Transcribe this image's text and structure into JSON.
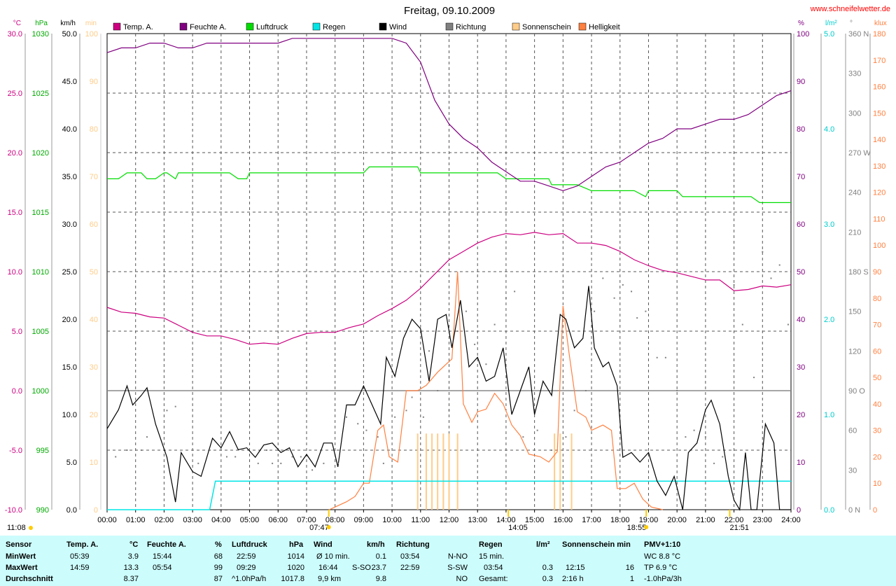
{
  "title": "Freitag, 09.10.2009",
  "website": "www.schneifelwetter.de",
  "colors": {
    "temp": "#cc0080",
    "humidity": "#800080",
    "pressure": "#00dd00",
    "rain": "#00e5e5",
    "wind": "#000000",
    "direction": "#808080",
    "sunshine": "#ffcc88",
    "brightness": "#ff8040",
    "stats_bg": "#ccfcfc"
  },
  "legend": [
    {
      "name": "Temp. A.",
      "color": "#cc0080"
    },
    {
      "name": "Feuchte A.",
      "color": "#800080"
    },
    {
      "name": "Luftdruck",
      "color": "#00dd00"
    },
    {
      "name": "Regen",
      "color": "#00e5e5"
    },
    {
      "name": "Wind",
      "color": "#000000"
    },
    {
      "name": "Richtung",
      "color": "#808080"
    },
    {
      "name": "Sonnenschein",
      "color": "#ffcc88"
    },
    {
      "name": "Helligkeit",
      "color": "#ff8040"
    }
  ],
  "axes": {
    "left": [
      {
        "unit": "°C",
        "color": "#cc0080",
        "ticks": [
          "30.0",
          "25.0",
          "20.0",
          "15.0",
          "10.0",
          "5.0",
          "0.0",
          "-5.0",
          "-10.0"
        ]
      },
      {
        "unit": "hPa",
        "color": "#00aa00",
        "ticks": [
          "1030",
          "1025",
          "1020",
          "1015",
          "1010",
          "1005",
          "1000",
          "995",
          "990"
        ]
      },
      {
        "unit": "km/h",
        "color": "#000000",
        "ticks": [
          "50.0",
          "45.0",
          "40.0",
          "35.0",
          "30.0",
          "25.0",
          "20.0",
          "15.0",
          "10.0",
          "5.0",
          "0.0"
        ]
      },
      {
        "unit": "min",
        "color": "#ffcc88",
        "ticks": [
          "100",
          "90",
          "80",
          "70",
          "60",
          "50",
          "40",
          "30",
          "20",
          "10",
          "0"
        ]
      }
    ],
    "right": [
      {
        "unit": "%",
        "color": "#800080",
        "ticks": [
          "100",
          "90",
          "80",
          "70",
          "60",
          "50",
          "40",
          "30",
          "20",
          "10",
          "0"
        ]
      },
      {
        "unit": "l/m²",
        "color": "#00cccc",
        "ticks": [
          "5.0",
          "4.0",
          "3.0",
          "2.0",
          "1.0",
          "0.0"
        ]
      },
      {
        "unit": "°",
        "color": "#808080",
        "ticks": [
          "360 N",
          "330",
          "300",
          "270 W",
          "240",
          "210",
          "180 S",
          "150",
          "120",
          "90 O",
          "60",
          "30",
          "0 N"
        ]
      },
      {
        "unit": "klux",
        "color": "#ff8040",
        "ticks": [
          "180",
          "170",
          "160",
          "150",
          "140",
          "130",
          "120",
          "110",
          "100",
          "90",
          "80",
          "70",
          "60",
          "50",
          "40",
          "30",
          "20",
          "10",
          "0"
        ]
      }
    ],
    "x_ticks": [
      "00:00",
      "01:00",
      "02:00",
      "03:00",
      "04:00",
      "05:00",
      "06:00",
      "07:00",
      "08:00",
      "09:00",
      "10:00",
      "11:00",
      "12:00",
      "13:00",
      "14:00",
      "15:00",
      "16:00",
      "17:00",
      "18:00",
      "19:00",
      "20:00",
      "21:00",
      "22:00",
      "23:00",
      "24:00"
    ]
  },
  "markers": {
    "moonrise": "11:08",
    "sunrise": "07:47",
    "sunset": "18:55",
    "m1": "14:05",
    "m2": "21:51"
  },
  "chart_data": {
    "type": "line",
    "title": "Freitag, 09.10.2009",
    "x_unit": "hour",
    "series": [
      {
        "name": "Temp. A.",
        "unit": "°C",
        "x": [
          0,
          0.5,
          1,
          1.5,
          2,
          2.5,
          3,
          3.5,
          4,
          4.5,
          5,
          5.5,
          6,
          6.5,
          7,
          7.5,
          8,
          8.5,
          9,
          9.5,
          10,
          10.5,
          11,
          11.5,
          12,
          12.5,
          13,
          13.5,
          14,
          14.5,
          15,
          15.5,
          16,
          16.5,
          17,
          17.5,
          18,
          18.5,
          19,
          19.5,
          20,
          20.5,
          21,
          21.5,
          22,
          22.5,
          23,
          23.5,
          24
        ],
        "y": [
          7.0,
          6.6,
          6.5,
          6.2,
          6.1,
          5.5,
          4.9,
          4.6,
          4.6,
          4.3,
          3.9,
          4.0,
          3.9,
          4.4,
          4.8,
          4.9,
          4.9,
          5.3,
          5.6,
          6.3,
          6.9,
          7.6,
          8.6,
          9.8,
          11.0,
          11.7,
          12.4,
          12.9,
          13.2,
          13.1,
          13.3,
          13.1,
          13.2,
          12.4,
          12.4,
          12.2,
          11.7,
          11.0,
          10.5,
          10.1,
          9.9,
          9.6,
          9.3,
          9.3,
          8.4,
          8.5,
          8.8,
          8.7,
          8.9
        ]
      },
      {
        "name": "Feuchte A.",
        "unit": "%",
        "x": [
          0,
          0.5,
          1,
          1.5,
          2,
          2.5,
          3,
          3.5,
          4,
          4.5,
          5,
          5.5,
          6,
          6.5,
          7,
          7.5,
          8,
          8.5,
          9,
          9.5,
          10,
          10.5,
          11,
          11.5,
          12,
          12.5,
          13,
          13.5,
          14,
          14.5,
          15,
          15.5,
          16,
          16.5,
          17,
          17.5,
          18,
          18.5,
          19,
          19.5,
          20,
          20.5,
          21,
          21.5,
          22,
          22.5,
          23,
          23.5,
          24
        ],
        "y": [
          96,
          97,
          97,
          98,
          98,
          97,
          97,
          98,
          98,
          98,
          98,
          98,
          98,
          99,
          99,
          99,
          99,
          99,
          99,
          99,
          99,
          98,
          94,
          86,
          81,
          78,
          76,
          73,
          71,
          69,
          69,
          68,
          67,
          68,
          70,
          72,
          73,
          75,
          77,
          78,
          80,
          80,
          81,
          82,
          82,
          83,
          85,
          87,
          88
        ]
      },
      {
        "name": "Luftdruck",
        "unit": "hPa",
        "x": [
          0,
          0.4,
          0.7,
          1.2,
          1.4,
          1.7,
          2.0,
          2.1,
          2.4,
          2.5,
          3,
          3.5,
          4,
          4.3,
          4.6,
          4.9,
          5,
          5.5,
          6,
          7,
          8,
          9,
          9.2,
          10,
          10.5,
          10.9,
          11,
          12,
          13,
          13.5,
          13.7,
          14,
          14.5,
          15,
          15.5,
          15.6,
          16,
          16.5,
          17,
          17.5,
          18,
          18.5,
          18.9,
          19,
          19.5,
          20,
          20.2,
          21,
          22,
          22.6,
          22.9,
          23,
          24
        ],
        "y": [
          1017.8,
          1017.8,
          1018.3,
          1018.3,
          1017.8,
          1017.8,
          1018.3,
          1018.3,
          1017.8,
          1018.3,
          1018.3,
          1018.3,
          1018.3,
          1018.3,
          1017.8,
          1017.8,
          1018.3,
          1018.3,
          1018.3,
          1018.3,
          1018.3,
          1018.3,
          1018.8,
          1018.8,
          1018.8,
          1018.8,
          1018.3,
          1018.3,
          1018.3,
          1018.3,
          1018.3,
          1017.8,
          1017.8,
          1017.8,
          1017.8,
          1017.3,
          1017.3,
          1017.3,
          1016.8,
          1016.8,
          1016.8,
          1016.8,
          1016.3,
          1016.8,
          1016.8,
          1016.8,
          1016.3,
          1016.3,
          1016.3,
          1016.3,
          1015.8,
          1015.8,
          1015.8
        ]
      },
      {
        "name": "Regen",
        "unit": "l/m²",
        "x": [
          0,
          3.6,
          3.8,
          3.9,
          24
        ],
        "y": [
          0,
          0,
          0.3,
          0.3,
          0.3
        ]
      },
      {
        "name": "Wind",
        "unit": "km/h",
        "x": [
          0,
          0.4,
          0.7,
          0.9,
          1.2,
          1.4,
          1.7,
          2.1,
          2.4,
          2.6,
          3,
          3.3,
          3.5,
          3.7,
          4,
          4.3,
          4.6,
          4.9,
          5.2,
          5.5,
          5.8,
          6.1,
          6.4,
          6.7,
          7.0,
          7.3,
          7.6,
          7.9,
          8.1,
          8.4,
          8.7,
          9.0,
          9.3,
          9.6,
          9.8,
          10.1,
          10.4,
          10.7,
          11.0,
          11.3,
          11.6,
          11.9,
          12.1,
          12.4,
          12.7,
          13.0,
          13.3,
          13.6,
          13.9,
          14.2,
          14.5,
          14.8,
          15.0,
          15.3,
          15.6,
          15.9,
          16.1,
          16.4,
          16.7,
          16.9,
          17.1,
          17.4,
          17.6,
          17.9,
          18.1,
          18.4,
          18.7,
          19.0,
          19.3,
          19.6,
          19.9,
          20.2,
          20.4,
          20.7,
          21.0,
          21.2,
          21.5,
          21.8,
          22.0,
          22.2,
          22.4,
          22.6,
          22.8,
          23.1,
          23.4,
          23.6,
          23.9,
          24
        ],
        "y": [
          8.5,
          10.5,
          13.0,
          11.0,
          12.0,
          12.8,
          9.0,
          5.5,
          0.8,
          6.0,
          4.0,
          3.5,
          5.5,
          7.5,
          6.5,
          8.2,
          6.3,
          6.5,
          5.5,
          6.8,
          7.0,
          6.0,
          6.5,
          4.5,
          5.8,
          4.5,
          7.0,
          7.0,
          4.5,
          11.0,
          11.0,
          13.0,
          11.0,
          9.0,
          16.0,
          14.0,
          18.0,
          20.0,
          19.0,
          13.5,
          20.0,
          20.5,
          17.0,
          22.0,
          15.0,
          16.0,
          13.5,
          14.0,
          17.0,
          10.0,
          12.5,
          15.0,
          10.0,
          13.5,
          12.0,
          20.5,
          20.0,
          17.0,
          18.0,
          23.5,
          17.0,
          15.0,
          15.5,
          13.0,
          5.5,
          6.0,
          5.0,
          6.0,
          3.0,
          1.5,
          3.5,
          0.0,
          6.0,
          7.0,
          10.5,
          11.5,
          9.0,
          3.5,
          1.0,
          0.0,
          6.0,
          0.0,
          0.0,
          9.0,
          7.0,
          0.0,
          0.0,
          0.0
        ]
      },
      {
        "name": "Richtung",
        "unit": "°",
        "x": [
          0.3,
          0.7,
          1.2,
          1.4,
          2.1,
          2.4,
          3.2,
          3.6,
          4.2,
          4.5,
          5.3,
          5.6,
          5.8,
          6.1,
          6.5,
          6.8,
          7.2,
          7.6,
          8.1,
          8.4,
          8.8,
          9.1,
          9.5,
          9.7,
          10.1,
          10.5,
          10.7,
          11.1,
          11.3,
          11.6,
          12.0,
          12.3,
          12.6,
          12.9,
          13.3,
          13.6,
          14.0,
          14.3,
          14.6,
          15.1,
          15.6,
          16.1,
          16.4,
          16.8,
          17.1,
          17.4,
          17.8,
          18.1,
          18.4,
          18.6,
          18.9,
          19.3,
          19.6,
          20.0,
          20.3,
          20.6,
          21.0,
          21.3,
          21.6,
          22.0,
          22.3,
          22.7,
          23.0,
          23.3,
          23.6,
          23.9
        ],
        "y": [
          40,
          45,
          45,
          55,
          75,
          78,
          35,
          45,
          40,
          40,
          35,
          45,
          35,
          35,
          40,
          40,
          30,
          35,
          35,
          70,
          65,
          60,
          55,
          35,
          70,
          75,
          85,
          70,
          120,
          90,
          75,
          135,
          150,
          125,
          110,
          140,
          160,
          165,
          55,
          60,
          45,
          55,
          75,
          90,
          150,
          175,
          160,
          170,
          165,
          145,
          150,
          115,
          115,
          90,
          55,
          60,
          55,
          35,
          40,
          170,
          140,
          100,
          195,
          175,
          185,
          140
        ]
      },
      {
        "name": "Sonnenschein",
        "unit": "min",
        "x": [
          10.9,
          11.2,
          11.4,
          11.6,
          11.8,
          12.0,
          12.3,
          15.7,
          15.9,
          16.3
        ],
        "y": [
          16,
          16,
          16,
          16,
          16,
          16,
          16,
          16,
          16,
          16
        ]
      },
      {
        "name": "Helligkeit",
        "unit": "klux",
        "x": [
          7.8,
          8.0,
          8.4,
          8.7,
          9.0,
          9.2,
          9.5,
          9.7,
          9.9,
          10.2,
          10.5,
          10.9,
          11.2,
          11.6,
          11.9,
          12.1,
          12.3,
          12.5,
          12.8,
          13.0,
          13.3,
          13.6,
          13.9,
          14.2,
          14.5,
          14.8,
          15.2,
          15.5,
          15.8,
          16.0,
          16.2,
          16.5,
          16.8,
          17.0,
          17.4,
          17.7,
          17.9,
          18.2,
          18.5,
          18.8,
          19.1,
          19.5
        ],
        "y": [
          0,
          1,
          3,
          5,
          10,
          10,
          30,
          32,
          20,
          18,
          45,
          45,
          47,
          52,
          55,
          57,
          90,
          40,
          33,
          37,
          38,
          44,
          40,
          32,
          28,
          21,
          20,
          18,
          22,
          77,
          60,
          37,
          35,
          30,
          32,
          30,
          8,
          8,
          10,
          4,
          1,
          0
        ]
      }
    ],
    "xlim": [
      0,
      24
    ],
    "ylim_left_temp": [
      -10,
      30
    ],
    "ylim_pressure": [
      990,
      1030
    ],
    "ylim_wind": [
      0,
      50
    ],
    "ylim_min": [
      0,
      100
    ],
    "ylim_humidity": [
      0,
      100
    ],
    "ylim_rain": [
      0,
      5
    ],
    "ylim_direction": [
      0,
      360
    ],
    "ylim_klux": [
      0,
      180
    ],
    "grid": true,
    "legend_position": "top"
  },
  "stats": {
    "headers": {
      "sensor": "Sensor",
      "temp": "Temp. A.",
      "temp_unit": "°C",
      "hum": "Feuchte A.",
      "hum_unit": "%",
      "press": "Luftdruck",
      "press_unit": "hPa",
      "wind": "Wind",
      "wind_unit": "km/h",
      "dir": "Richtung",
      "rain": "Regen",
      "rain_unit": "l/m²",
      "sun": "Sonnenschein min",
      "pmv": "PMV+1:10"
    },
    "rows": [
      {
        "label": "MinWert",
        "temp_t": "05:39",
        "temp_v": "3.9",
        "hum_t": "15:44",
        "hum_v": "68",
        "press_t": "22:59",
        "press_v": "1014",
        "wind_t": "Ø 10 min.",
        "wind_v": "0.1",
        "dir_t": "03:54",
        "dir_v": "N-NO",
        "rain_t": "15 min.",
        "rain_v": "",
        "sun_t": "",
        "sun_v": "",
        "pmv": "WC 8.8 °C"
      },
      {
        "label": "MaxWert",
        "temp_t": "14:59",
        "temp_v": "13.3",
        "hum_t": "05:54",
        "hum_v": "99",
        "press_t": "09:29",
        "press_v": "1020",
        "wind_t": "16:44",
        "wind_m": "S-SO",
        "wind_v": "23.7",
        "dir_t": "22:59",
        "dir_v": "S-SW",
        "rain_t": "03:54",
        "rain_v": "0.3",
        "sun_t": "12:15",
        "sun_v": "16",
        "pmv": "TP 6.9 °C"
      },
      {
        "label": "Durchschnitt",
        "temp_t": "",
        "temp_v": "8.37",
        "hum_t": "",
        "hum_v": "87",
        "press_t": "^1.0hPa/h",
        "press_v": "1017.8",
        "wind_t": "9,9 km",
        "wind_v": "9.8",
        "dir_t": "",
        "dir_v": "NO",
        "rain_t": "Gesamt:",
        "rain_v": "0.3",
        "sun_t": "2:16 h",
        "sun_v": "1",
        "pmv": "-1.0hPa/3h"
      }
    ]
  }
}
